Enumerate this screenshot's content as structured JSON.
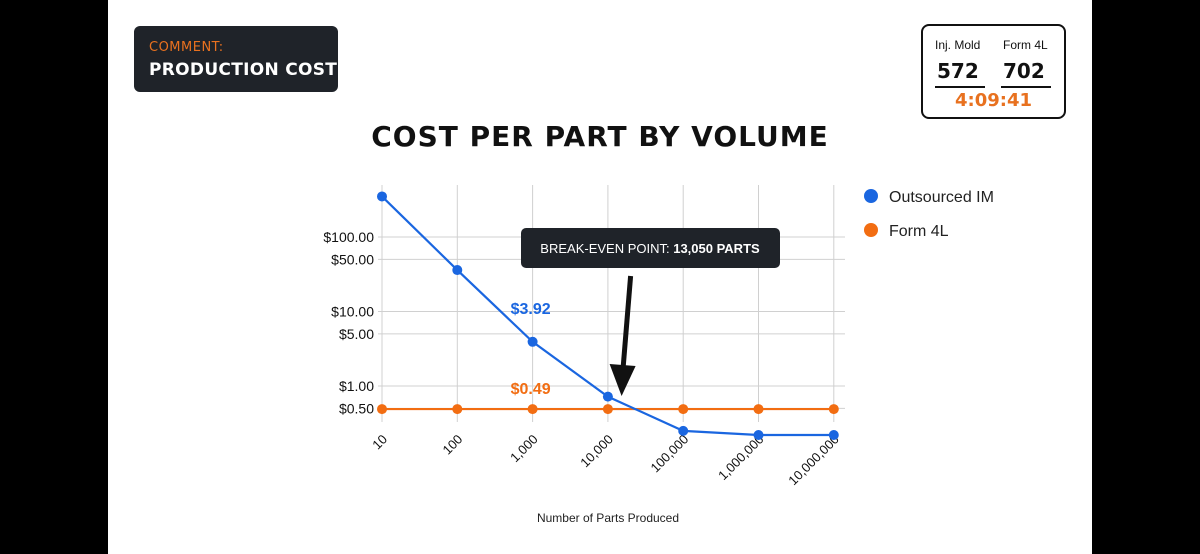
{
  "comment": {
    "label": "COMMENT:",
    "title": "PRODUCTION COST"
  },
  "scoreboard": {
    "col1_label": "Inj. Mold",
    "col2_label": "Form 4L",
    "col1_value": "572",
    "col2_value": "702",
    "time": "4:09:41"
  },
  "colors": {
    "blue": "#1a66e0",
    "orange": "#f26d12",
    "dark": "#1f2329"
  },
  "chart_data": {
    "type": "line",
    "title": "COST PER PART BY VOLUME",
    "xlabel": "Number of Parts Produced",
    "ylabel": "",
    "x_scale": "log",
    "y_scale": "log",
    "categories": [
      "10",
      "100",
      "1,000",
      "10,000",
      "100,000",
      "1,000,000",
      "10,000,000"
    ],
    "yticks": [
      {
        "label": "$100.00",
        "value": 100
      },
      {
        "label": "$50.00",
        "value": 50
      },
      {
        "label": "$10.00",
        "value": 10
      },
      {
        "label": "$5.00",
        "value": 5
      },
      {
        "label": "$1.00",
        "value": 1
      },
      {
        "label": "$0.50",
        "value": 0.5
      }
    ],
    "grid": true,
    "legend": "right",
    "series": [
      {
        "name": "Outsourced IM",
        "color": "#1a66e0",
        "values": [
          350,
          36,
          3.92,
          0.72,
          0.25,
          0.22,
          0.22
        ]
      },
      {
        "name": "Form 4L",
        "color": "#f26d12",
        "values": [
          0.49,
          0.49,
          0.49,
          0.49,
          0.49,
          0.49,
          0.49
        ]
      }
    ],
    "data_labels": [
      {
        "text": "$3.92",
        "series": 0
      },
      {
        "text": "$0.49",
        "series": 1
      }
    ],
    "annotation": {
      "prefix": "BREAK-EVEN POINT: ",
      "emphasis": "13,050 PARTS",
      "x_value": 13050
    }
  }
}
